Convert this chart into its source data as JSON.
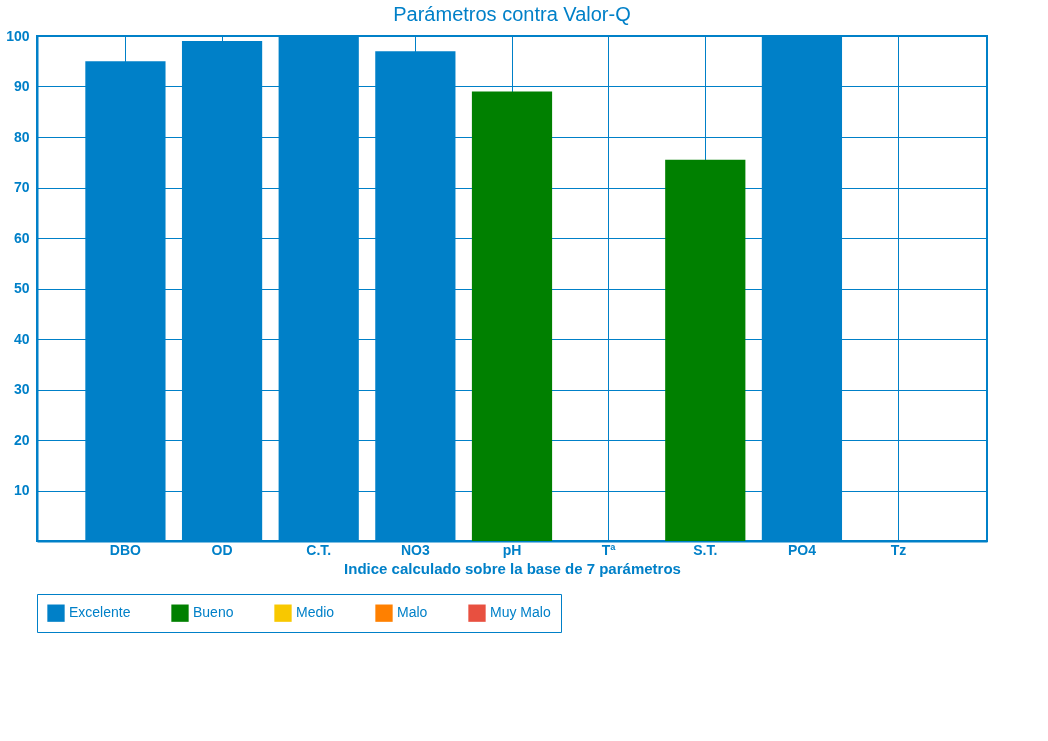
{
  "chart_data": {
    "type": "bar",
    "title": "Parámetros contra Valor-Q",
    "xlabel": "Indice calculado sobre la base de 7 parámetros",
    "categories": [
      "DBO",
      "OD",
      "C.T.",
      "NO3",
      "pH",
      "Tª",
      "S.T.",
      "PO4",
      "Tz"
    ],
    "series": [
      {
        "name": "Excelente",
        "color": "#0080c8",
        "values": [
          95,
          99,
          100,
          97,
          null,
          null,
          null,
          100,
          null
        ]
      },
      {
        "name": "Bueno",
        "color": "#008000",
        "values": [
          null,
          null,
          null,
          null,
          89,
          null,
          75.5,
          null,
          null
        ]
      },
      {
        "name": "Medio",
        "color": "#f8c800",
        "values": [
          null,
          null,
          null,
          null,
          null,
          null,
          null,
          null,
          null
        ]
      },
      {
        "name": "Malo",
        "color": "#ff8000",
        "values": [
          null,
          null,
          null,
          null,
          null,
          null,
          null,
          null,
          null
        ]
      },
      {
        "name": "Muy Malo",
        "color": "#e85040",
        "values": [
          null,
          null,
          null,
          null,
          null,
          null,
          null,
          null,
          null
        ]
      }
    ],
    "ylim": [
      0,
      100
    ],
    "yticks": [
      10,
      20,
      30,
      40,
      50,
      60,
      70,
      80,
      90,
      100
    ],
    "grid": true,
    "legend": "bottom"
  }
}
